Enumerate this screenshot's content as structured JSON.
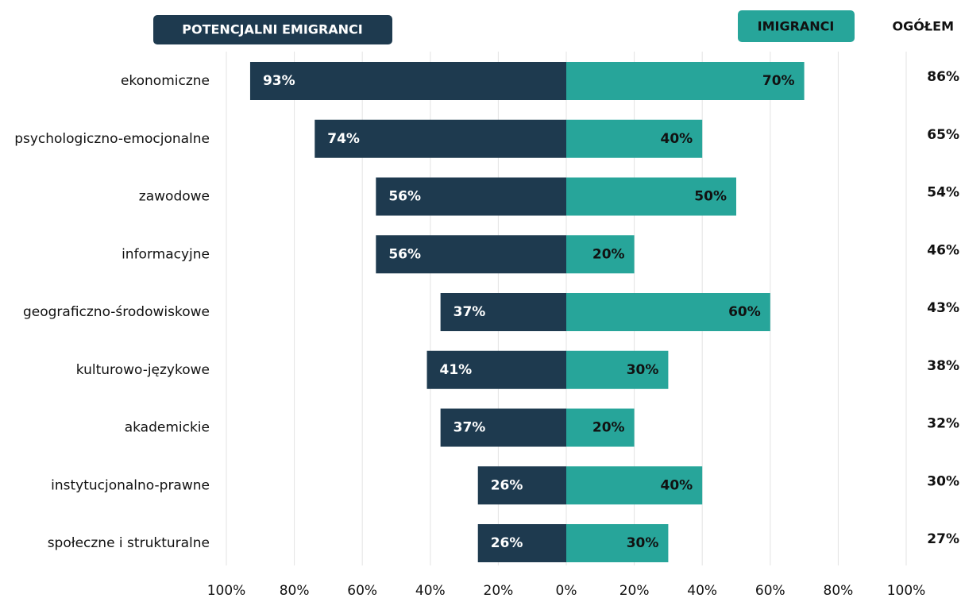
{
  "chart_data": {
    "type": "diverging_bar",
    "categories": [
      "ekonomiczne",
      "psychologiczno-emocjonalne",
      "zawodowe",
      "informacyjne",
      "geograficzno-środowiskowe",
      "kulturowo-językowe",
      "akademickie",
      "instytucjonalno-prawne",
      "społeczne i strukturalne"
    ],
    "series": [
      {
        "name": "POTENCJALNI EMIGRANCI",
        "color": "#1e3a4f",
        "direction": "left",
        "values": [
          93,
          74,
          56,
          56,
          37,
          41,
          37,
          26,
          26
        ],
        "value_labels": [
          "93%",
          "74%",
          "56%",
          "56%",
          "37%",
          "41%",
          "37%",
          "26%",
          "26%"
        ]
      },
      {
        "name": "IMIGRANCI",
        "color": "#27a59a",
        "direction": "right",
        "values": [
          70,
          40,
          50,
          20,
          60,
          30,
          20,
          40,
          30
        ],
        "value_labels": [
          "70%",
          "40%",
          "50%",
          "20%",
          "60%",
          "30%",
          "20%",
          "40%",
          "30%"
        ]
      }
    ],
    "total": {
      "name": "OGÓŁEM",
      "values": [
        86,
        65,
        54,
        46,
        43,
        38,
        32,
        30,
        27
      ],
      "value_labels": [
        "86%",
        "65%",
        "54%",
        "46%",
        "43%",
        "38%",
        "32%",
        "30%",
        "27%"
      ]
    },
    "xlim": [
      -100,
      100
    ],
    "xticks": [
      {
        "value": -100,
        "label": "100%"
      },
      {
        "value": -80,
        "label": "80%"
      },
      {
        "value": -60,
        "label": "60%"
      },
      {
        "value": -40,
        "label": "40%"
      },
      {
        "value": -20,
        "label": "20%"
      },
      {
        "value": 0,
        "label": "0%"
      },
      {
        "value": 20,
        "label": "20%"
      },
      {
        "value": 40,
        "label": "40%"
      },
      {
        "value": 60,
        "label": "60%"
      },
      {
        "value": 80,
        "label": "80%"
      },
      {
        "value": 100,
        "label": "100%"
      }
    ],
    "grid": true
  }
}
